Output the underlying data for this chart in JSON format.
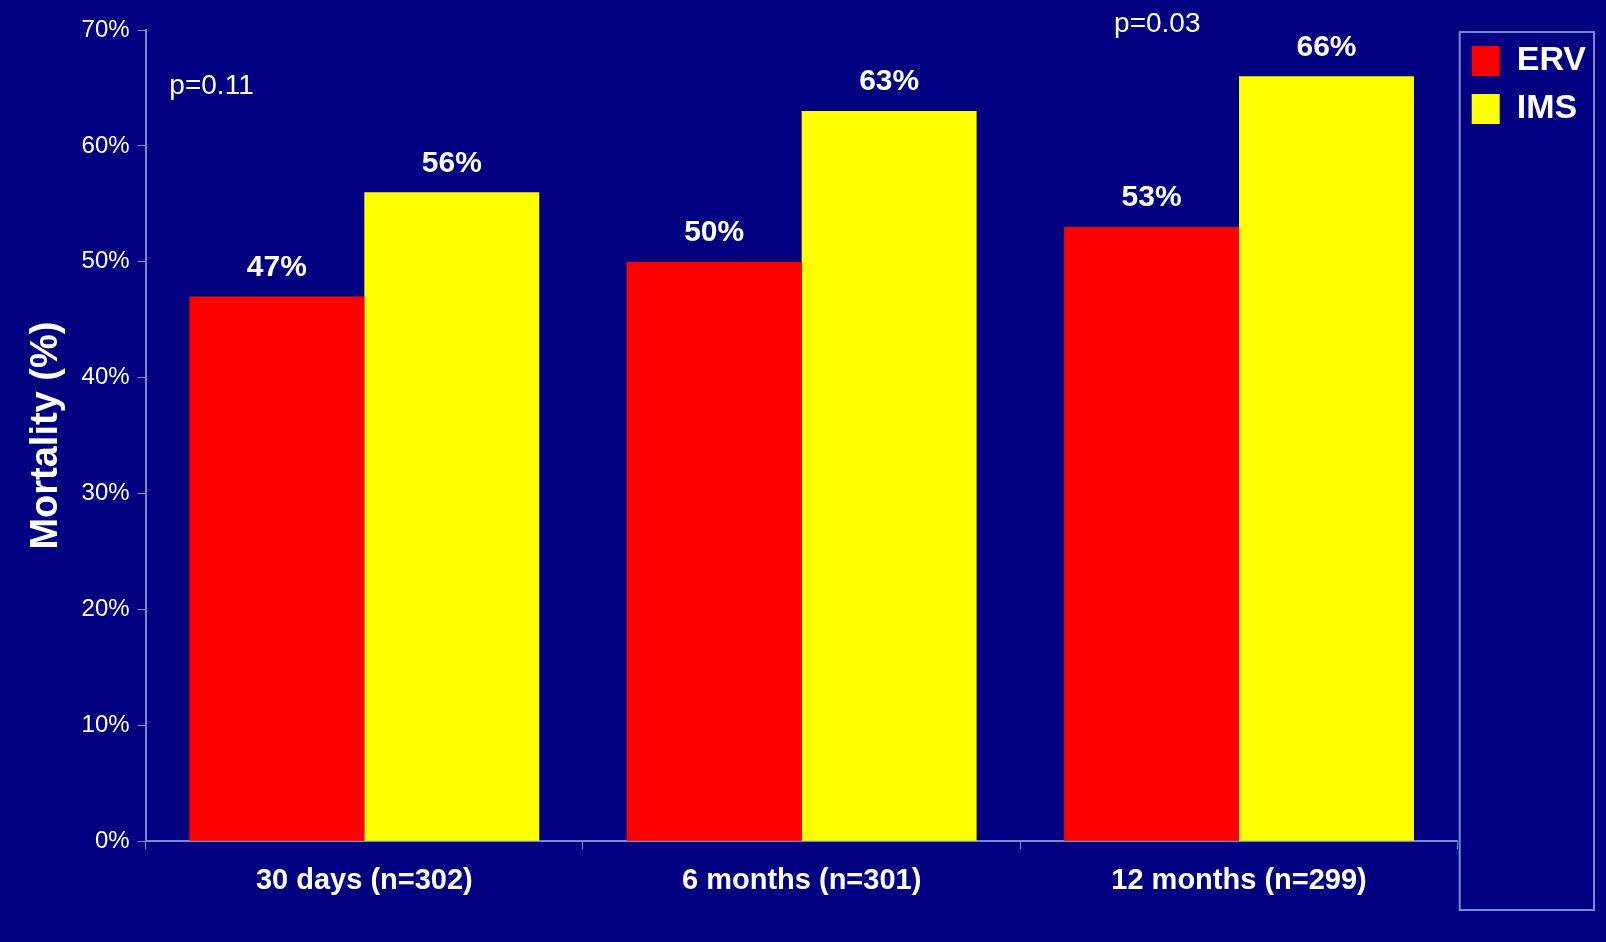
{
  "chart_data": {
    "type": "bar",
    "ylabel": "Mortality (%)",
    "categories": [
      "30 days (n=302)",
      "6 months (n=301)",
      "12 months (n=299)"
    ],
    "series": [
      {
        "name": "ERV",
        "color": "#ff0000",
        "values": [
          47,
          50,
          53
        ],
        "value_labels": [
          "47%",
          "50%",
          "53%"
        ]
      },
      {
        "name": "IMS",
        "color": "#ffff00",
        "values": [
          56,
          63,
          66
        ],
        "value_labels": [
          "56%",
          "63%",
          "66%"
        ]
      }
    ],
    "ylim": [
      0,
      70
    ],
    "yticks": [
      {
        "value": 0,
        "label": "0%"
      },
      {
        "value": 10,
        "label": "10%"
      },
      {
        "value": 20,
        "label": "20%"
      },
      {
        "value": 30,
        "label": "30%"
      },
      {
        "value": 40,
        "label": "40%"
      },
      {
        "value": 50,
        "label": "50%"
      },
      {
        "value": 60,
        "label": "60%"
      },
      {
        "value": 70,
        "label": "70%"
      }
    ],
    "annotations": [
      "p=0.11",
      "p=0.03"
    ],
    "grid": false,
    "legend": "top right"
  }
}
